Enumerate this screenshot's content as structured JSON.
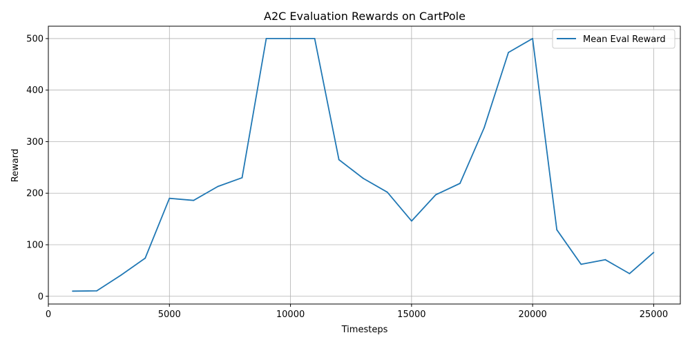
{
  "chart_data": {
    "type": "line",
    "title": "A2C Evaluation Rewards on CartPole",
    "xlabel": "Timesteps",
    "ylabel": "Reward",
    "xlim": [
      0,
      26100
    ],
    "ylim": [
      -15,
      524
    ],
    "xticks": [
      0,
      5000,
      10000,
      15000,
      20000,
      25000
    ],
    "yticks": [
      0,
      100,
      200,
      300,
      400,
      500
    ],
    "grid": true,
    "legend_position": "top-right",
    "series": [
      {
        "name": "Mean Eval Reward",
        "color": "#1f77b4",
        "x": [
          1000,
          2000,
          3000,
          4000,
          5000,
          6000,
          7000,
          8000,
          9000,
          10000,
          11000,
          12000,
          13000,
          14000,
          15000,
          16000,
          17000,
          18000,
          19000,
          20000,
          21000,
          22000,
          23000,
          24000,
          25000
        ],
        "y": [
          10,
          10.5,
          41,
          74,
          190,
          186,
          213,
          230,
          500,
          500,
          500,
          265,
          229,
          202,
          146,
          197,
          219,
          327,
          473,
          500,
          129,
          62,
          71,
          44,
          85
        ]
      }
    ]
  }
}
